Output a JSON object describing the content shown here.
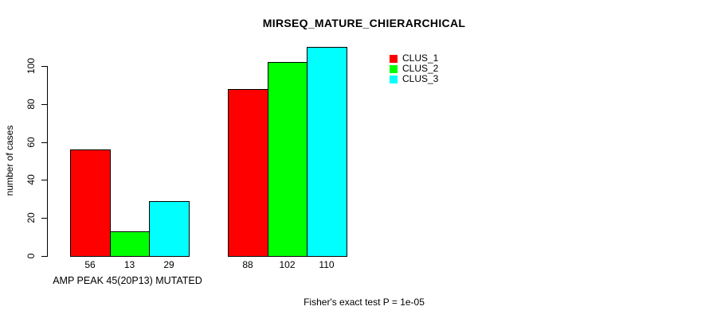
{
  "title": "MIRSEQ_MATURE_CHIERARCHICAL",
  "ylabel": "number of cases",
  "xlabel": "AMP PEAK 45(20P13) MUTATED",
  "footer": "Fisher's exact test P = 1e-05",
  "colors": {
    "clus1": "#ff0000",
    "clus2": "#00ff00",
    "clus3": "#00ffff",
    "axis": "#000000",
    "background": "#ffffff"
  },
  "chart_data": {
    "type": "bar",
    "title": "MIRSEQ_MATURE_CHIERARCHICAL",
    "ylabel": "number of cases",
    "xlabel": "AMP PEAK 45(20P13) MUTATED",
    "annotation": "Fisher's exact test P = 1e-05",
    "yticks": [
      0,
      20,
      40,
      60,
      80,
      100
    ],
    "ylim": [
      0,
      110
    ],
    "grid": false,
    "legend_position": "top-right-inside",
    "groups": [
      "AMP PEAK 45(20P13) MUTATED",
      ""
    ],
    "series": [
      {
        "name": "CLUS_1",
        "color": "#ff0000",
        "values": [
          56,
          88
        ]
      },
      {
        "name": "CLUS_2",
        "color": "#00ff00",
        "values": [
          13,
          102
        ]
      },
      {
        "name": "CLUS_3",
        "color": "#00ffff",
        "values": [
          29,
          110
        ]
      }
    ]
  }
}
